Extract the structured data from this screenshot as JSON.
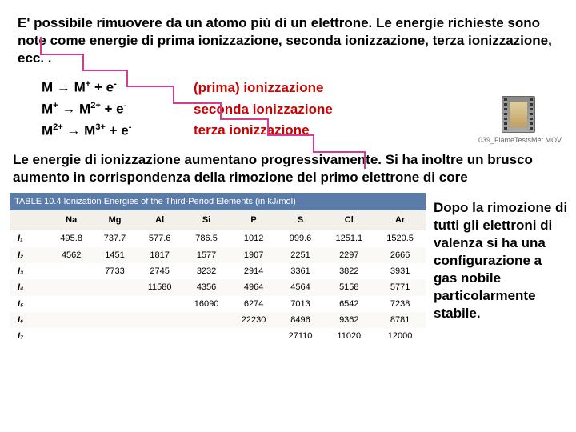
{
  "intro": "E' possibile rimuovere da un atomo più di un elettrone. Le energie richieste sono note come energie di prima ionizzazione, seconda ionizzazione, terza ionizzazione, ecc. .",
  "equations": [
    {
      "lhs_html": "M → M<span class='sup'>+</span> + e<span class='sup'>-</span>",
      "rhs": "(prima) ionizzazione"
    },
    {
      "lhs_html": "M<span class='sup'>+</span> → M<span class='sup'>2+</span> + e<span class='sup'>-</span>",
      "rhs": "seconda ionizzazione"
    },
    {
      "lhs_html": "M<span class='sup'>2+</span> → M<span class='sup'>3+</span> + e<span class='sup'>-</span>",
      "rhs": "terza ionizzazione"
    }
  ],
  "mid_text": "Le energie di ionizzazione aumentano progressivamente. Si ha inoltre un brusco aumento in corrispondenza della rimozione del primo elettrone di core",
  "side_text": "Dopo la rimozione di tutti gli elettroni di valenza si ha una configurazione a gas nobile particolarmente stabile.",
  "film_caption": "039_FlameTestsMet.MOV",
  "table": {
    "caption": "TABLE 10.4   Ionization Energies of the Third-Period Elements (in kJ/mol)",
    "columns": [
      "",
      "Na",
      "Mg",
      "Al",
      "Si",
      "P",
      "S",
      "Cl",
      "Ar"
    ],
    "rows": [
      [
        "I₁",
        "495.8",
        "737.7",
        "577.6",
        "786.5",
        "1012",
        "999.6",
        "1251.1",
        "1520.5"
      ],
      [
        "I₂",
        "4562",
        "1451",
        "1817",
        "1577",
        "1907",
        "2251",
        "2297",
        "2666"
      ],
      [
        "I₃",
        "",
        "7733",
        "2745",
        "3232",
        "2914",
        "3361",
        "3822",
        "3931"
      ],
      [
        "I₄",
        "",
        "",
        "11580",
        "4356",
        "4964",
        "4564",
        "5158",
        "5771"
      ],
      [
        "I₅",
        "",
        "",
        "",
        "16090",
        "6274",
        "7013",
        "6542",
        "7238"
      ],
      [
        "I₆",
        "",
        "",
        "",
        "",
        "22230",
        "8496",
        "9362",
        "8781"
      ],
      [
        "I₇",
        "",
        "",
        "",
        "",
        "",
        "27110",
        "11020",
        "12000"
      ]
    ],
    "header_bg": "#5b7ca8",
    "header_text": "#ffffff",
    "row_alt_bg": "#faf9f5",
    "thead_bg": "#f2f0e8",
    "stair_color": "#d63b8e",
    "font_size_table": 11,
    "font_size_body": 17
  },
  "colors": {
    "red_text": "#cc0000",
    "body_text": "#000000",
    "background": "#ffffff"
  }
}
